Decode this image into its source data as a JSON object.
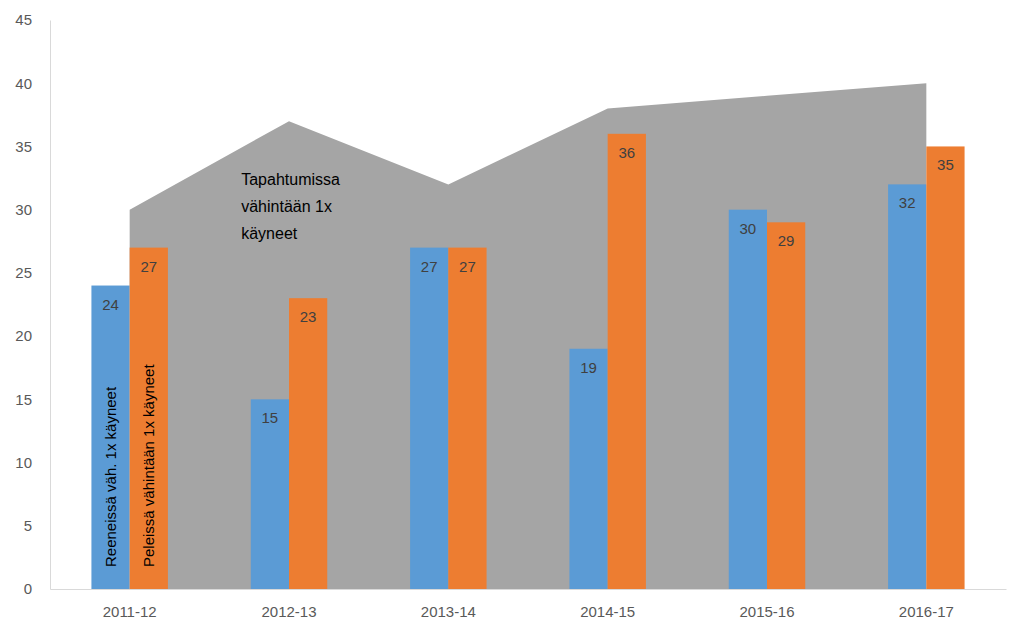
{
  "chart_data": {
    "type": "bar",
    "categories": [
      "2011-12",
      "2012-13",
      "2013-14",
      "2014-15",
      "2015-16",
      "2016-17"
    ],
    "series": [
      {
        "name": "Tapahtumissa vähintään 1x käyneet",
        "type": "area",
        "color": "#a5a5a5",
        "values": [
          30,
          37,
          32,
          38,
          39,
          40
        ],
        "data_labels": false
      },
      {
        "name": "Reeneissä väh. 1x käyneet",
        "type": "bar",
        "color": "#5b9bd5",
        "values": [
          24,
          15,
          27,
          19,
          30,
          32
        ],
        "data_labels": true
      },
      {
        "name": "Peleissä vähintään 1x käyneet",
        "type": "bar",
        "color": "#ed7d31",
        "values": [
          27,
          23,
          27,
          36,
          29,
          35
        ],
        "data_labels": true
      }
    ],
    "ylim": [
      0,
      45
    ],
    "yticks": [
      0,
      5,
      10,
      15,
      20,
      25,
      30,
      35,
      40,
      45
    ],
    "grid": false
  }
}
